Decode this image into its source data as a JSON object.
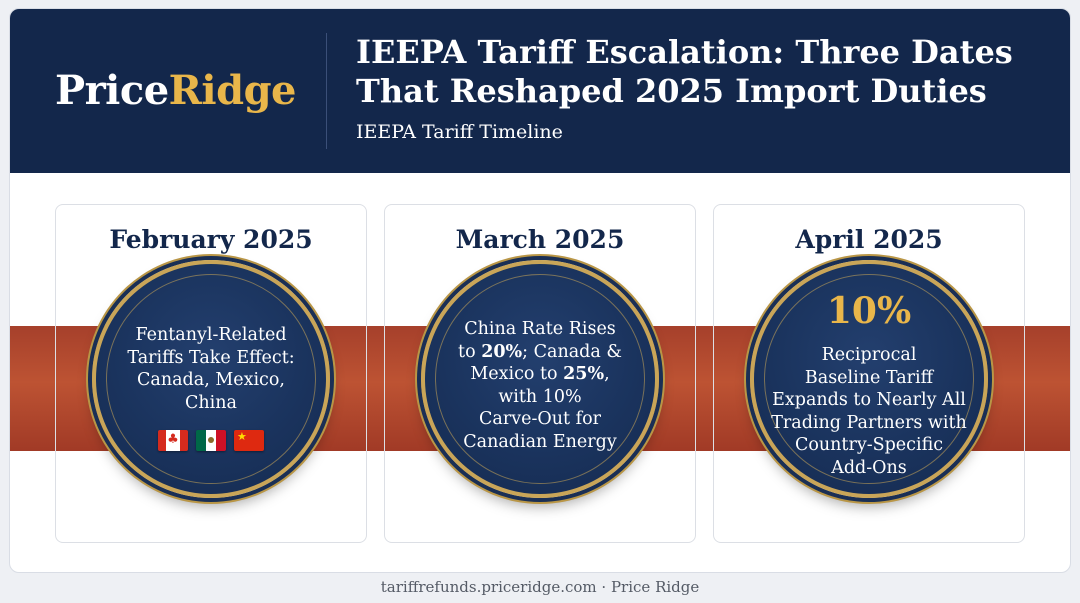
{
  "brand": {
    "part1": "Price",
    "part2": "Ridge"
  },
  "header": {
    "title_line1": "IEEPA Tariff Escalation: Three Dates",
    "title_line2": "That Reshaped 2025 Import Duties",
    "subtitle": "IEEPA Tariff Timeline"
  },
  "colors": {
    "navy": "#13274b",
    "gold": "#e9b64a",
    "band": "#b34a2f"
  },
  "columns": [
    {
      "date": "February 2025",
      "lines": [
        "Fentanyl-Related",
        "Tariffs Take Effect:",
        "Canada, Mexico,",
        "China"
      ],
      "flags": [
        "canada-flag-icon",
        "mexico-flag-icon",
        "china-flag-icon"
      ]
    },
    {
      "date": "March 2025",
      "line1": "China Rate Rises",
      "line2_pre": "to ",
      "line2_bold": "20%",
      "line2_post": "; Canada &",
      "line3_pre": "Mexico to ",
      "line3_bold": "25%",
      "line3_post": ",",
      "line4": "with 10%",
      "line5": "Carve-Out for",
      "line6": "Canadian Energy"
    },
    {
      "date": "April 2025",
      "highlight": "10%",
      "lines": [
        "Reciprocal",
        "Baseline Tariff",
        "Expands to Nearly All",
        "Trading Partners with",
        "Country-Specific",
        "Add-Ons"
      ]
    }
  ],
  "footer": "tariffrefunds.priceridge.com · Price Ridge"
}
